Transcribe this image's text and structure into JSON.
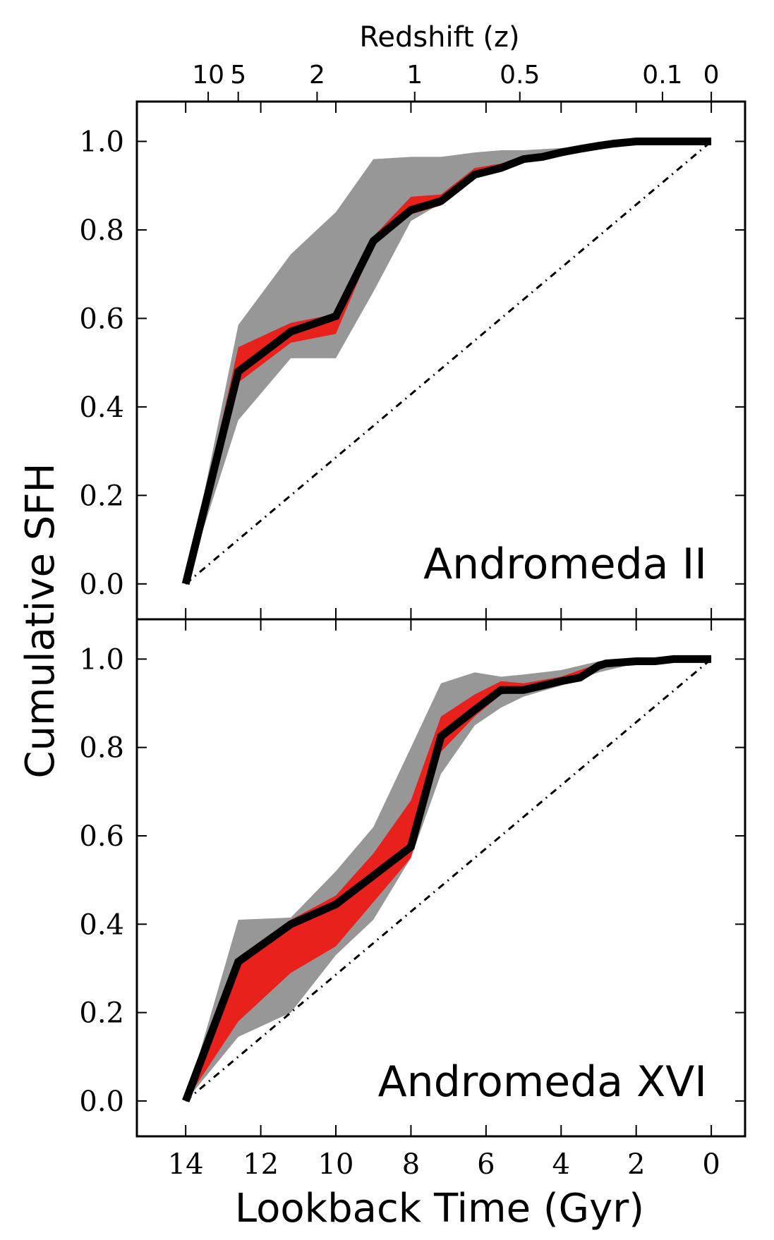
{
  "chart_data": {
    "type": "line",
    "xlabel": "Lookback Time (Gyr)",
    "ylabel": "Cumulative SFH",
    "top_axis_title": "Redshift (z)",
    "xlim": [
      15.3,
      -0.9
    ],
    "x_ticks": [
      14,
      12,
      10,
      8,
      6,
      4,
      2,
      0
    ],
    "x_tick_labels": [
      "14",
      "12",
      "10",
      "8",
      "6",
      "4",
      "2",
      "0"
    ],
    "top_ticks": [
      {
        "label": "10",
        "t": 13.4
      },
      {
        "label": "5",
        "t": 12.6
      },
      {
        "label": "2",
        "t": 10.5
      },
      {
        "label": "1",
        "t": 7.9
      },
      {
        "label": "0.5",
        "t": 5.1
      },
      {
        "label": "0.1",
        "t": 1.3
      },
      {
        "label": "0",
        "t": 0.0
      }
    ],
    "panels": [
      {
        "label": "Andromeda II",
        "ylim": [
          -0.08,
          1.09
        ],
        "y_ticks": [
          0.0,
          0.2,
          0.4,
          0.6,
          0.8,
          1.0
        ],
        "y_tick_labels": [
          "0.0",
          "0.2",
          "0.4",
          "0.6",
          "0.8",
          "1.0"
        ],
        "best_fit": {
          "t": [
            14.0,
            12.6,
            11.2,
            10.0,
            9.0,
            8.0,
            7.2,
            6.3,
            5.6,
            5.0,
            4.5,
            4.0,
            3.5,
            3.0,
            2.6,
            2.0,
            1.5,
            1.0,
            0.5,
            0.0
          ],
          "y": [
            0.0,
            0.48,
            0.57,
            0.605,
            0.775,
            0.845,
            0.865,
            0.925,
            0.94,
            0.96,
            0.965,
            0.975,
            0.983,
            0.99,
            0.995,
            1.0,
            1.0,
            1.0,
            1.0,
            1.0
          ]
        },
        "random_band": {
          "t": [
            14.0,
            12.6,
            11.2,
            10.0,
            9.0,
            8.0,
            7.2,
            6.3,
            5.6,
            5.0,
            4.0,
            3.0,
            2.0,
            1.0,
            0.0
          ],
          "lower": [
            0.0,
            0.455,
            0.545,
            0.565,
            0.765,
            0.835,
            0.855,
            0.92,
            0.935,
            0.955,
            0.97,
            0.988,
            1.0,
            1.0,
            1.0
          ],
          "upper": [
            0.0,
            0.535,
            0.59,
            0.61,
            0.785,
            0.875,
            0.88,
            0.94,
            0.95,
            0.965,
            0.978,
            0.993,
            1.0,
            1.0,
            1.0
          ]
        },
        "total_band": {
          "t": [
            14.0,
            12.6,
            11.2,
            10.0,
            9.0,
            8.0,
            7.2,
            6.3,
            5.6,
            5.0,
            4.0,
            3.0,
            2.0,
            1.0,
            0.0
          ],
          "lower": [
            0.0,
            0.37,
            0.51,
            0.51,
            0.66,
            0.82,
            0.86,
            0.92,
            0.935,
            0.955,
            0.97,
            0.985,
            1.0,
            1.0,
            1.0
          ],
          "upper": [
            0.0,
            0.585,
            0.745,
            0.84,
            0.96,
            0.965,
            0.965,
            0.975,
            0.98,
            0.98,
            0.985,
            0.995,
            1.0,
            1.0,
            1.0
          ]
        },
        "reference_line": {
          "t": [
            14.0,
            0.0
          ],
          "y": [
            0.0,
            1.0
          ]
        }
      },
      {
        "label": "Andromeda XVI",
        "ylim": [
          -0.08,
          1.09
        ],
        "y_ticks": [
          0.0,
          0.2,
          0.4,
          0.6,
          0.8,
          1.0
        ],
        "y_tick_labels": [
          "0.0",
          "0.2",
          "0.4",
          "0.6",
          "0.8",
          "1.0"
        ],
        "best_fit": {
          "t": [
            14.0,
            12.6,
            11.2,
            10.0,
            9.0,
            8.0,
            7.2,
            6.3,
            5.6,
            5.0,
            4.5,
            4.0,
            3.5,
            3.0,
            2.8,
            2.0,
            1.5,
            1.0,
            0.5,
            0.0
          ],
          "y": [
            0.0,
            0.315,
            0.4,
            0.445,
            0.51,
            0.575,
            0.825,
            0.885,
            0.93,
            0.93,
            0.94,
            0.95,
            0.958,
            0.985,
            0.99,
            0.995,
            0.995,
            1.0,
            1.0,
            1.0
          ]
        },
        "random_band": {
          "t": [
            14.0,
            12.6,
            11.2,
            10.0,
            9.0,
            8.0,
            7.2,
            6.3,
            5.6,
            5.0,
            4.0,
            3.0,
            2.0,
            1.0,
            0.0
          ],
          "lower": [
            0.0,
            0.18,
            0.29,
            0.35,
            0.45,
            0.55,
            0.79,
            0.87,
            0.92,
            0.925,
            0.945,
            0.98,
            0.99,
            1.0,
            1.0
          ],
          "upper": [
            0.0,
            0.32,
            0.41,
            0.465,
            0.56,
            0.68,
            0.87,
            0.92,
            0.95,
            0.945,
            0.96,
            0.99,
            1.0,
            1.0,
            1.0
          ]
        },
        "total_band": {
          "t": [
            14.0,
            12.6,
            11.2,
            10.0,
            9.0,
            8.0,
            7.2,
            6.3,
            5.6,
            5.0,
            4.0,
            3.0,
            2.0,
            1.0,
            0.0
          ],
          "lower": [
            0.0,
            0.145,
            0.2,
            0.33,
            0.41,
            0.55,
            0.74,
            0.85,
            0.89,
            0.915,
            0.94,
            0.97,
            0.99,
            1.0,
            1.0
          ],
          "upper": [
            0.0,
            0.41,
            0.415,
            0.52,
            0.62,
            0.8,
            0.945,
            0.97,
            0.96,
            0.965,
            0.975,
            0.995,
            1.0,
            1.0,
            1.0
          ]
        },
        "reference_line": {
          "t": [
            14.0,
            0.0
          ],
          "y": [
            0.0,
            1.0
          ]
        }
      }
    ],
    "colors": {
      "best_fit": "#000000",
      "random_band": "#e8211d",
      "total_band": "#979797",
      "reference_line": "#000000"
    }
  }
}
